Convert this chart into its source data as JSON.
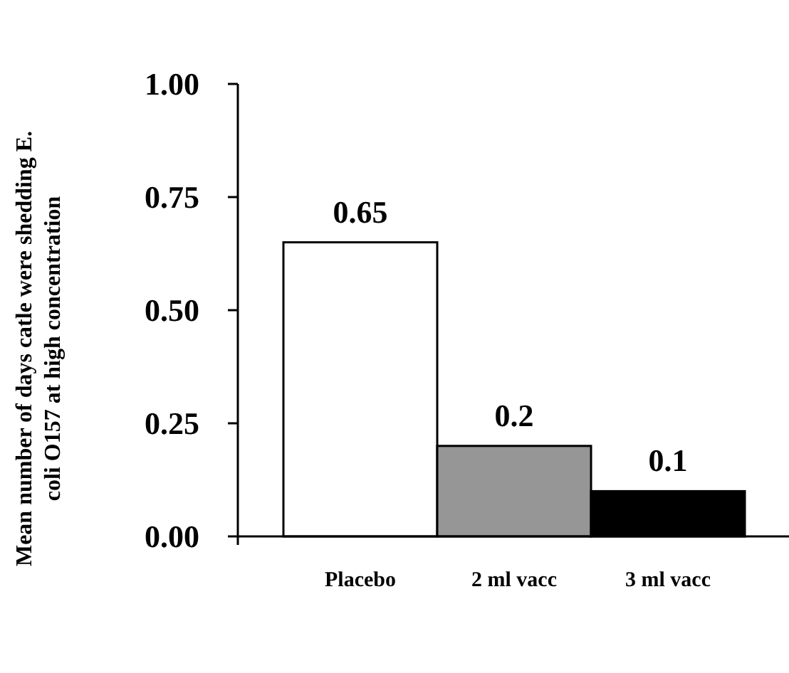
{
  "chart_data": {
    "type": "bar",
    "ylabel": "Mean number of days catle were shedding E. coli O157 at high concentration",
    "categories": [
      "Placebo",
      "2 ml vacc",
      "3 ml vacc"
    ],
    "values": [
      0.65,
      0.2,
      0.1
    ],
    "colors": [
      "#ffffff",
      "#969696",
      "#000000"
    ],
    "ylim": [
      0,
      1
    ],
    "yticks": [
      {
        "value": 0,
        "label": "0.00"
      },
      {
        "value": 0.25,
        "label": "0.25"
      },
      {
        "value": 0.5,
        "label": "0.50"
      },
      {
        "value": 0.75,
        "label": "0.75"
      },
      {
        "value": 1,
        "label": "1.00"
      }
    ],
    "data_labels": true
  }
}
